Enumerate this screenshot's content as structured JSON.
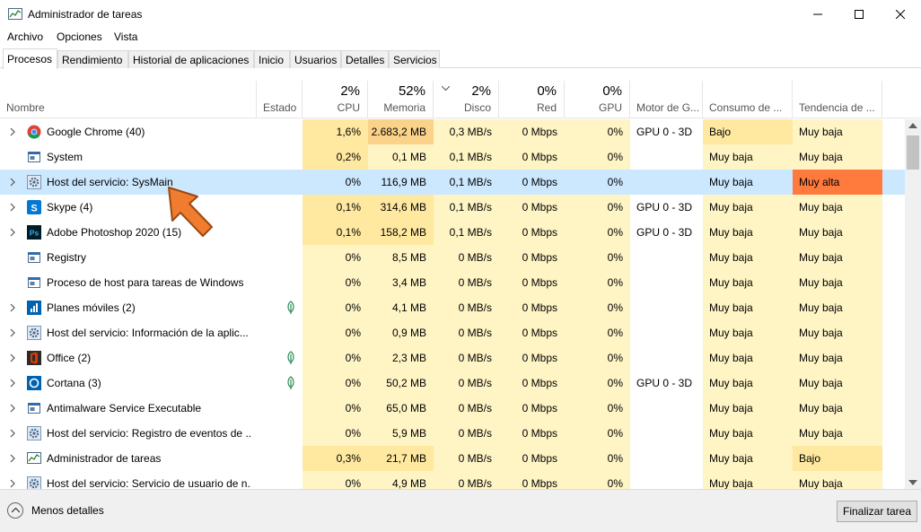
{
  "window": {
    "title": "Administrador de tareas"
  },
  "menu": [
    "Archivo",
    "Opciones",
    "Vista"
  ],
  "tabs": [
    "Procesos",
    "Rendimiento",
    "Historial de aplicaciones",
    "Inicio",
    "Usuarios",
    "Detalles",
    "Servicios"
  ],
  "columns": {
    "name": "Nombre",
    "status": "Estado",
    "cpu": {
      "pct": "2%",
      "label": "CPU"
    },
    "memory": {
      "pct": "52%",
      "label": "Memoria"
    },
    "disk": {
      "pct": "2%",
      "label": "Disco"
    },
    "network": {
      "pct": "0%",
      "label": "Red"
    },
    "gpu": {
      "pct": "0%",
      "label": "GPU"
    },
    "gpu_engine": "Motor de G...",
    "power": "Consumo de ...",
    "power_trend": "Tendencia de ..."
  },
  "colors": {
    "heat_light": "#fff4c4",
    "heat_mid": "#ffe8a0",
    "heat_high": "#fbd28a",
    "trend_high": "#ff7a3d",
    "selected": "#cce8ff"
  },
  "rows": [
    {
      "name": "Google Chrome (40)",
      "icon": "chrome-icon",
      "expandable": true,
      "leaf": false,
      "cpu": "1,6%",
      "mem": "2.683,2 MB",
      "disk": "0,3 MB/s",
      "net": "0 Mbps",
      "gpu": "0%",
      "motor": "GPU 0 - 3D",
      "cons": "Bajo",
      "tend": "Muy baja",
      "heat": {
        "cpu": "mid",
        "mem": "high",
        "disk": "light",
        "net": "light",
        "gpu": "light",
        "motor": "none",
        "cons": "mid",
        "tend": "light"
      }
    },
    {
      "name": "System",
      "icon": "window-icon",
      "expandable": false,
      "leaf": false,
      "cpu": "0,2%",
      "mem": "0,1 MB",
      "disk": "0,1 MB/s",
      "net": "0 Mbps",
      "gpu": "0%",
      "motor": "",
      "cons": "Muy baja",
      "tend": "Muy baja",
      "heat": {
        "cpu": "mid",
        "mem": "light",
        "disk": "light",
        "net": "light",
        "gpu": "light",
        "motor": "none",
        "cons": "light",
        "tend": "light"
      }
    },
    {
      "name": "Host del servicio: SysMain",
      "icon": "gear-icon",
      "expandable": true,
      "leaf": false,
      "selected": true,
      "cpu": "0%",
      "mem": "116,9 MB",
      "disk": "0,1 MB/s",
      "net": "0 Mbps",
      "gpu": "0%",
      "motor": "",
      "cons": "Muy baja",
      "tend": "Muy alta",
      "heat": {
        "cpu": "none",
        "mem": "none",
        "disk": "none",
        "net": "none",
        "gpu": "none",
        "motor": "none",
        "cons": "none",
        "tend": "trend"
      }
    },
    {
      "name": "Skype (4)",
      "icon": "skype-icon",
      "expandable": true,
      "leaf": false,
      "cpu": "0,1%",
      "mem": "314,6 MB",
      "disk": "0,1 MB/s",
      "net": "0 Mbps",
      "gpu": "0%",
      "motor": "GPU 0 - 3D",
      "cons": "Muy baja",
      "tend": "Muy baja",
      "heat": {
        "cpu": "mid",
        "mem": "mid",
        "disk": "light",
        "net": "light",
        "gpu": "light",
        "motor": "none",
        "cons": "light",
        "tend": "light"
      }
    },
    {
      "name": "Adobe Photoshop 2020 (15)",
      "icon": "photoshop-icon",
      "expandable": true,
      "leaf": false,
      "cpu": "0,1%",
      "mem": "158,2 MB",
      "disk": "0,1 MB/s",
      "net": "0 Mbps",
      "gpu": "0%",
      "motor": "GPU 0 - 3D",
      "cons": "Muy baja",
      "tend": "Muy baja",
      "heat": {
        "cpu": "mid",
        "mem": "mid",
        "disk": "light",
        "net": "light",
        "gpu": "light",
        "motor": "none",
        "cons": "light",
        "tend": "light"
      }
    },
    {
      "name": "Registry",
      "icon": "window-icon",
      "expandable": false,
      "leaf": false,
      "cpu": "0%",
      "mem": "8,5 MB",
      "disk": "0 MB/s",
      "net": "0 Mbps",
      "gpu": "0%",
      "motor": "",
      "cons": "Muy baja",
      "tend": "Muy baja",
      "heat": {
        "cpu": "light",
        "mem": "light",
        "disk": "light",
        "net": "light",
        "gpu": "light",
        "motor": "none",
        "cons": "light",
        "tend": "light"
      }
    },
    {
      "name": "Proceso de host para tareas de Windows",
      "icon": "window-icon",
      "expandable": false,
      "leaf": false,
      "cpu": "0%",
      "mem": "3,4 MB",
      "disk": "0 MB/s",
      "net": "0 Mbps",
      "gpu": "0%",
      "motor": "",
      "cons": "Muy baja",
      "tend": "Muy baja",
      "heat": {
        "cpu": "light",
        "mem": "light",
        "disk": "light",
        "net": "light",
        "gpu": "light",
        "motor": "none",
        "cons": "light",
        "tend": "light"
      }
    },
    {
      "name": "Planes móviles (2)",
      "icon": "mobile-plans-icon",
      "expandable": true,
      "leaf": true,
      "cpu": "0%",
      "mem": "4,1 MB",
      "disk": "0 MB/s",
      "net": "0 Mbps",
      "gpu": "0%",
      "motor": "",
      "cons": "Muy baja",
      "tend": "Muy baja",
      "heat": {
        "cpu": "light",
        "mem": "light",
        "disk": "light",
        "net": "light",
        "gpu": "light",
        "motor": "none",
        "cons": "light",
        "tend": "light"
      }
    },
    {
      "name": "Host del servicio: Información de la aplic...",
      "icon": "gear-icon",
      "expandable": true,
      "leaf": false,
      "cpu": "0%",
      "mem": "0,9 MB",
      "disk": "0 MB/s",
      "net": "0 Mbps",
      "gpu": "0%",
      "motor": "",
      "cons": "Muy baja",
      "tend": "Muy baja",
      "heat": {
        "cpu": "light",
        "mem": "light",
        "disk": "light",
        "net": "light",
        "gpu": "light",
        "motor": "none",
        "cons": "light",
        "tend": "light"
      }
    },
    {
      "name": "Office (2)",
      "icon": "office-icon",
      "expandable": true,
      "leaf": true,
      "cpu": "0%",
      "mem": "2,3 MB",
      "disk": "0 MB/s",
      "net": "0 Mbps",
      "gpu": "0%",
      "motor": "",
      "cons": "Muy baja",
      "tend": "Muy baja",
      "heat": {
        "cpu": "light",
        "mem": "light",
        "disk": "light",
        "net": "light",
        "gpu": "light",
        "motor": "none",
        "cons": "light",
        "tend": "light"
      }
    },
    {
      "name": "Cortana (3)",
      "icon": "cortana-icon",
      "expandable": true,
      "leaf": true,
      "cpu": "0%",
      "mem": "50,2 MB",
      "disk": "0 MB/s",
      "net": "0 Mbps",
      "gpu": "0%",
      "motor": "GPU 0 - 3D",
      "cons": "Muy baja",
      "tend": "Muy baja",
      "heat": {
        "cpu": "light",
        "mem": "light",
        "disk": "light",
        "net": "light",
        "gpu": "light",
        "motor": "none",
        "cons": "light",
        "tend": "light"
      }
    },
    {
      "name": "Antimalware Service Executable",
      "icon": "window-icon",
      "expandable": true,
      "leaf": false,
      "cpu": "0%",
      "mem": "65,0 MB",
      "disk": "0 MB/s",
      "net": "0 Mbps",
      "gpu": "0%",
      "motor": "",
      "cons": "Muy baja",
      "tend": "Muy baja",
      "heat": {
        "cpu": "light",
        "mem": "light",
        "disk": "light",
        "net": "light",
        "gpu": "light",
        "motor": "none",
        "cons": "light",
        "tend": "light"
      }
    },
    {
      "name": "Host del servicio: Registro de eventos de ...",
      "icon": "gear-icon",
      "expandable": true,
      "leaf": false,
      "cpu": "0%",
      "mem": "5,9 MB",
      "disk": "0 MB/s",
      "net": "0 Mbps",
      "gpu": "0%",
      "motor": "",
      "cons": "Muy baja",
      "tend": "Muy baja",
      "heat": {
        "cpu": "light",
        "mem": "light",
        "disk": "light",
        "net": "light",
        "gpu": "light",
        "motor": "none",
        "cons": "light",
        "tend": "light"
      }
    },
    {
      "name": "Administrador de tareas",
      "icon": "taskmgr-icon",
      "expandable": true,
      "leaf": false,
      "cpu": "0,3%",
      "mem": "21,7 MB",
      "disk": "0 MB/s",
      "net": "0 Mbps",
      "gpu": "0%",
      "motor": "",
      "cons": "Muy baja",
      "tend": "Bajo",
      "heat": {
        "cpu": "mid",
        "mem": "mid",
        "disk": "light",
        "net": "light",
        "gpu": "light",
        "motor": "none",
        "cons": "light",
        "tend": "mid"
      }
    },
    {
      "name": "Host del servicio: Servicio de usuario de n...",
      "icon": "gear-icon",
      "expandable": true,
      "leaf": false,
      "cpu": "0%",
      "mem": "4,9 MB",
      "disk": "0 MB/s",
      "net": "0 Mbps",
      "gpu": "0%",
      "motor": "",
      "cons": "Muy baja",
      "tend": "Muy baja",
      "heat": {
        "cpu": "light",
        "mem": "light",
        "disk": "light",
        "net": "light",
        "gpu": "light",
        "motor": "none",
        "cons": "light",
        "tend": "light"
      }
    }
  ],
  "footer": {
    "less_details": "Menos detalles",
    "end_task": "Finalizar tarea"
  }
}
